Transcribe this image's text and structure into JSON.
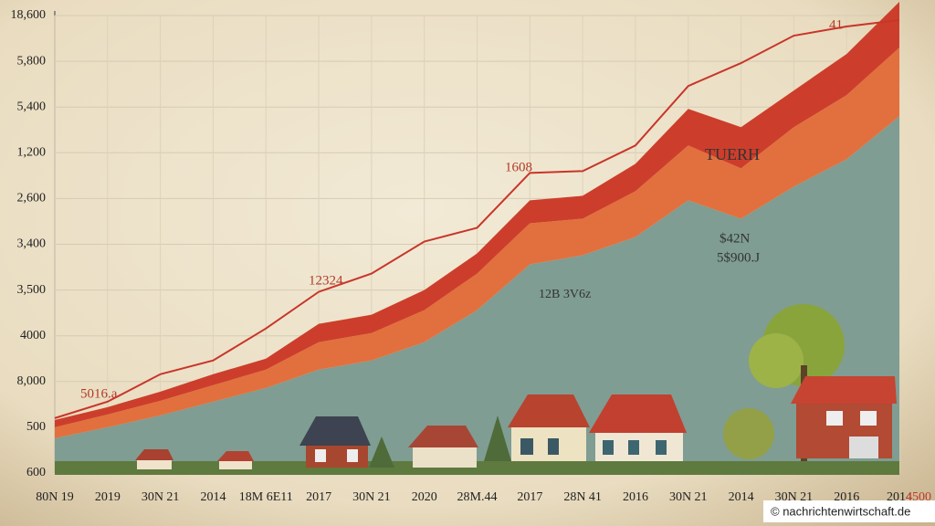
{
  "chart_data": {
    "type": "area",
    "stacked": true,
    "categories": [
      "80N 19",
      "2019",
      "30N 21",
      "2014",
      "18M 6E11",
      "2017",
      "30N 21",
      "2020",
      "28M.44",
      "2017",
      "28N 41",
      "2016",
      "30N 21",
      "2014",
      "30N 21",
      "2016",
      "2014"
    ],
    "series": [
      {
        "color": "#7f9d92",
        "values": [
          0.76,
          1.0,
          1.26,
          1.56,
          1.86,
          2.26,
          2.46,
          2.86,
          3.56,
          4.56,
          4.76,
          5.16,
          5.96,
          5.56,
          6.26,
          6.86,
          7.8
        ]
      },
      {
        "color": "#e2703e",
        "values": [
          0.24,
          0.28,
          0.32,
          0.36,
          0.4,
          0.6,
          0.6,
          0.7,
          0.8,
          0.9,
          0.8,
          1.0,
          1.2,
          1.1,
          1.3,
          1.4,
          1.5
        ]
      },
      {
        "color": "#cc3e2b",
        "values": [
          0.16,
          0.16,
          0.2,
          0.24,
          0.24,
          0.4,
          0.4,
          0.44,
          0.44,
          0.5,
          0.5,
          0.6,
          0.8,
          0.9,
          0.8,
          0.9,
          1.0
        ]
      }
    ],
    "line": {
      "color": "#c8352a",
      "values": [
        1.2,
        1.56,
        2.16,
        2.46,
        3.16,
        3.96,
        4.36,
        5.06,
        5.36,
        6.56,
        6.6,
        7.16,
        8.46,
        8.96,
        9.56,
        9.76,
        9.9
      ]
    },
    "ylim": [
      0,
      10
    ],
    "yticks": [
      {
        "value": 10,
        "label": "18,600"
      },
      {
        "value": 9,
        "label": "5,800"
      },
      {
        "value": 8,
        "label": "5,400"
      },
      {
        "value": 7,
        "label": "1,200"
      },
      {
        "value": 6,
        "label": "2,600"
      },
      {
        "value": 5,
        "label": "3,400"
      },
      {
        "value": 4,
        "label": "3,500"
      },
      {
        "value": 3,
        "label": "4000"
      },
      {
        "value": 2,
        "label": "8,000"
      },
      {
        "value": 1,
        "label": "500"
      },
      {
        "value": 0,
        "label": "600"
      }
    ],
    "grid": true,
    "annotations": [
      "5016.a",
      "12324",
      "1608",
      "41",
      "TUERH",
      "$42N",
      "5$900.J",
      "12B 3V6z",
      "4500"
    ],
    "watermark": "© nachrichtenwirtschaft.de"
  }
}
